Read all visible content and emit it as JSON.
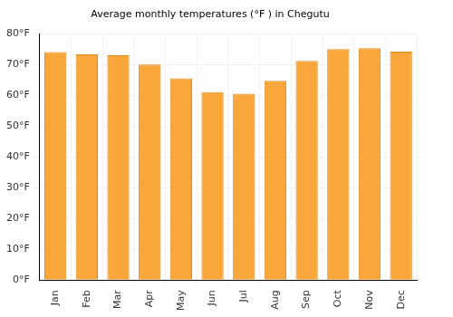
{
  "chart_data": {
    "type": "bar",
    "title": "Average monthly temperatures (°F ) in Chegutu",
    "categories": [
      "Jan",
      "Feb",
      "Mar",
      "Apr",
      "May",
      "Jun",
      "Jul",
      "Aug",
      "Sep",
      "Oct",
      "Nov",
      "Dec"
    ],
    "values": [
      74,
      73.3,
      73,
      70,
      65.5,
      61,
      60.5,
      64.7,
      71.2,
      75,
      75.3,
      74.2
    ],
    "color": "#f9a63a",
    "ylim": [
      0,
      80
    ],
    "yticks": [
      {
        "value": 0,
        "label": "0°F"
      },
      {
        "value": 10,
        "label": "10°F"
      },
      {
        "value": 20,
        "label": "20°F"
      },
      {
        "value": 30,
        "label": "30°F"
      },
      {
        "value": 40,
        "label": "40°F"
      },
      {
        "value": 50,
        "label": "50°F"
      },
      {
        "value": 60,
        "label": "60°F"
      },
      {
        "value": 70,
        "label": "70°F"
      },
      {
        "value": 80,
        "label": "80°F"
      }
    ],
    "grid": true
  }
}
